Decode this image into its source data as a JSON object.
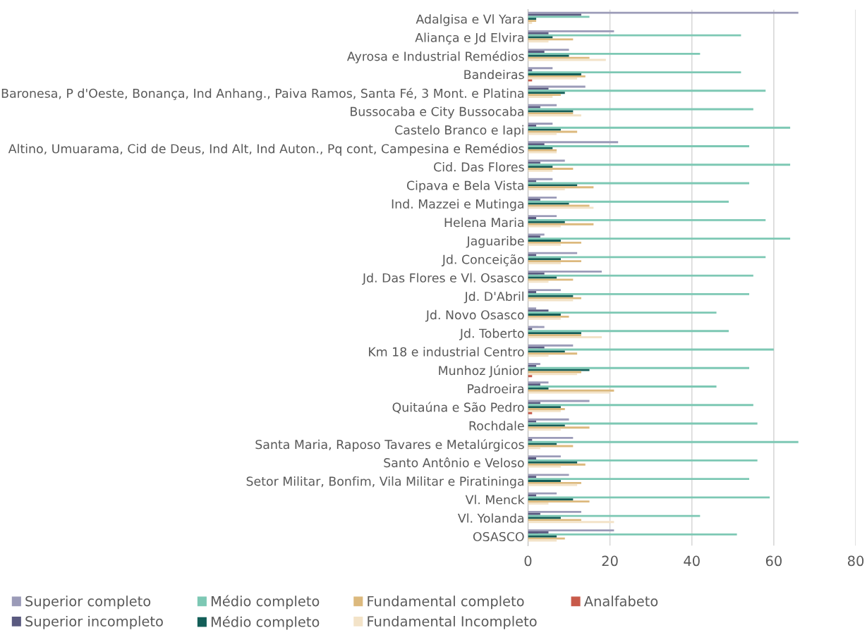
{
  "chart_data": {
    "type": "bar",
    "orientation": "horizontal",
    "categories": [
      "Adalgisa e Vl Yara",
      "Aliança e Jd Elvira",
      "Ayrosa e Industrial Remédios",
      "Bandeiras",
      "Baronesa, P d'Oeste, Bonança, Ind Anhang., Paiva Ramos, Santa Fé, 3 Mont. e Platina",
      "Bussocaba e City Bussocaba",
      "Castelo Branco e Iapi",
      "Altino, Umuarama, Cid de Deus, Ind Alt, Ind Auton., Pq cont, Campesina e Remédios",
      "Cid. Das Flores",
      "Cipava e Bela Vista",
      "Ind. Mazzei e Mutinga",
      "Helena Maria",
      "Jaguaribe",
      "Jd. Conceição",
      "Jd. Das Flores e Vl. Osasco",
      "Jd. D'Abril",
      "Jd. Novo Osasco",
      "Jd. Toberto",
      "Km 18 e industrial Centro",
      "Munhoz Júnior",
      "Padroeira",
      "Quitaúna e São Pedro",
      "Rochdale",
      "Santa Maria, Raposo Tavares e Metalúrgicos",
      "Santo Antônio e Veloso",
      "Setor Militar, Bonfim, Vila Militar e Piratininga",
      "Vl. Menck",
      "Vl. Yolanda",
      "OSASCO"
    ],
    "series": [
      {
        "name": "Superior completo",
        "color": "#9b9bb8",
        "values": [
          66,
          21,
          10,
          6,
          14,
          7,
          6,
          22,
          9,
          6,
          7,
          7,
          4,
          12,
          18,
          8,
          2,
          4,
          11,
          3,
          5,
          15,
          10,
          11,
          8,
          10,
          7,
          13,
          21
        ]
      },
      {
        "name": "Superior incompleto",
        "color": "#5a5a80",
        "values": [
          13,
          5,
          4,
          1,
          5,
          3,
          2,
          4,
          3,
          2,
          3,
          2,
          3,
          2,
          4,
          2,
          5,
          1,
          4,
          2,
          3,
          3,
          2,
          1,
          2,
          2,
          2,
          3,
          5
        ]
      },
      {
        "name": "Médio completo",
        "color": "#7dc8b4",
        "values": [
          15,
          52,
          42,
          52,
          58,
          55,
          64,
          54,
          64,
          54,
          49,
          58,
          64,
          58,
          55,
          54,
          46,
          49,
          60,
          54,
          46,
          55,
          56,
          66,
          56,
          54,
          59,
          42,
          51
        ]
      },
      {
        "name": "Médio completo",
        "color": "#135e58",
        "values": [
          2,
          6,
          10,
          13,
          9,
          11,
          8,
          6,
          6,
          12,
          10,
          9,
          8,
          8,
          7,
          11,
          8,
          13,
          9,
          15,
          5,
          8,
          9,
          7,
          12,
          8,
          11,
          8,
          7
        ]
      },
      {
        "name": "Fundamental completo",
        "color": "#dcb97d",
        "values": [
          2,
          11,
          15,
          14,
          8,
          11,
          12,
          7,
          11,
          16,
          15,
          16,
          13,
          13,
          11,
          13,
          10,
          13,
          12,
          13,
          21,
          9,
          15,
          11,
          14,
          13,
          15,
          13,
          9
        ]
      },
      {
        "name": "Fundamental Incompleto",
        "color": "#f3e3c8",
        "values": [
          1,
          5,
          19,
          12,
          6,
          13,
          7,
          7,
          6,
          9,
          16,
          8,
          8,
          8,
          5,
          11,
          8,
          18,
          5,
          12,
          20,
          8,
          8,
          3,
          8,
          12,
          5,
          21,
          7
        ]
      },
      {
        "name": "Analfabeto",
        "color": "#c85a4a",
        "values": [
          0,
          0,
          0,
          1,
          0,
          0,
          0,
          0,
          0,
          0,
          0,
          0,
          0,
          0,
          0,
          0,
          0,
          0,
          0,
          1,
          0,
          1,
          0,
          0,
          0,
          0,
          0,
          0,
          0
        ]
      }
    ],
    "xlim": [
      0,
      80
    ],
    "xticks": [
      0,
      20,
      40,
      60,
      80
    ],
    "grid": "x",
    "legend": "bottom"
  }
}
